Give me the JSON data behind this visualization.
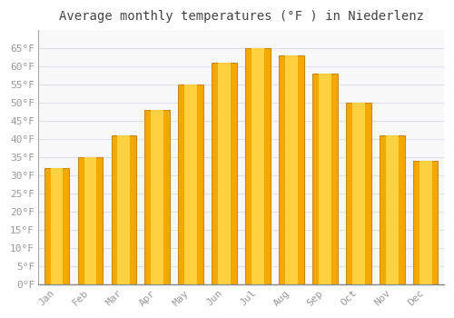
{
  "title": "Average monthly temperatures (°F ) in Niederlenz",
  "months": [
    "Jan",
    "Feb",
    "Mar",
    "Apr",
    "May",
    "Jun",
    "Jul",
    "Aug",
    "Sep",
    "Oct",
    "Nov",
    "Dec"
  ],
  "values": [
    32,
    35,
    41,
    48,
    55,
    61,
    65,
    63,
    58,
    50,
    41,
    34
  ],
  "bar_color_outer": "#F5A800",
  "bar_color_inner": "#FFD040",
  "bar_edge_color": "#C8881A",
  "ylim": [
    0,
    70
  ],
  "yticks": [
    0,
    5,
    10,
    15,
    20,
    25,
    30,
    35,
    40,
    45,
    50,
    55,
    60,
    65
  ],
  "ytick_labels": [
    "0°F",
    "5°F",
    "10°F",
    "15°F",
    "20°F",
    "25°F",
    "30°F",
    "35°F",
    "40°F",
    "45°F",
    "50°F",
    "55°F",
    "60°F",
    "65°F"
  ],
  "background_color": "#FFFFFF",
  "plot_bg_color": "#F8F8F8",
  "grid_color": "#E0E0E8",
  "title_fontsize": 10,
  "tick_fontsize": 8,
  "tick_color": "#999999",
  "font_family": "monospace",
  "bar_width": 0.75,
  "inner_bar_ratio": 0.5
}
